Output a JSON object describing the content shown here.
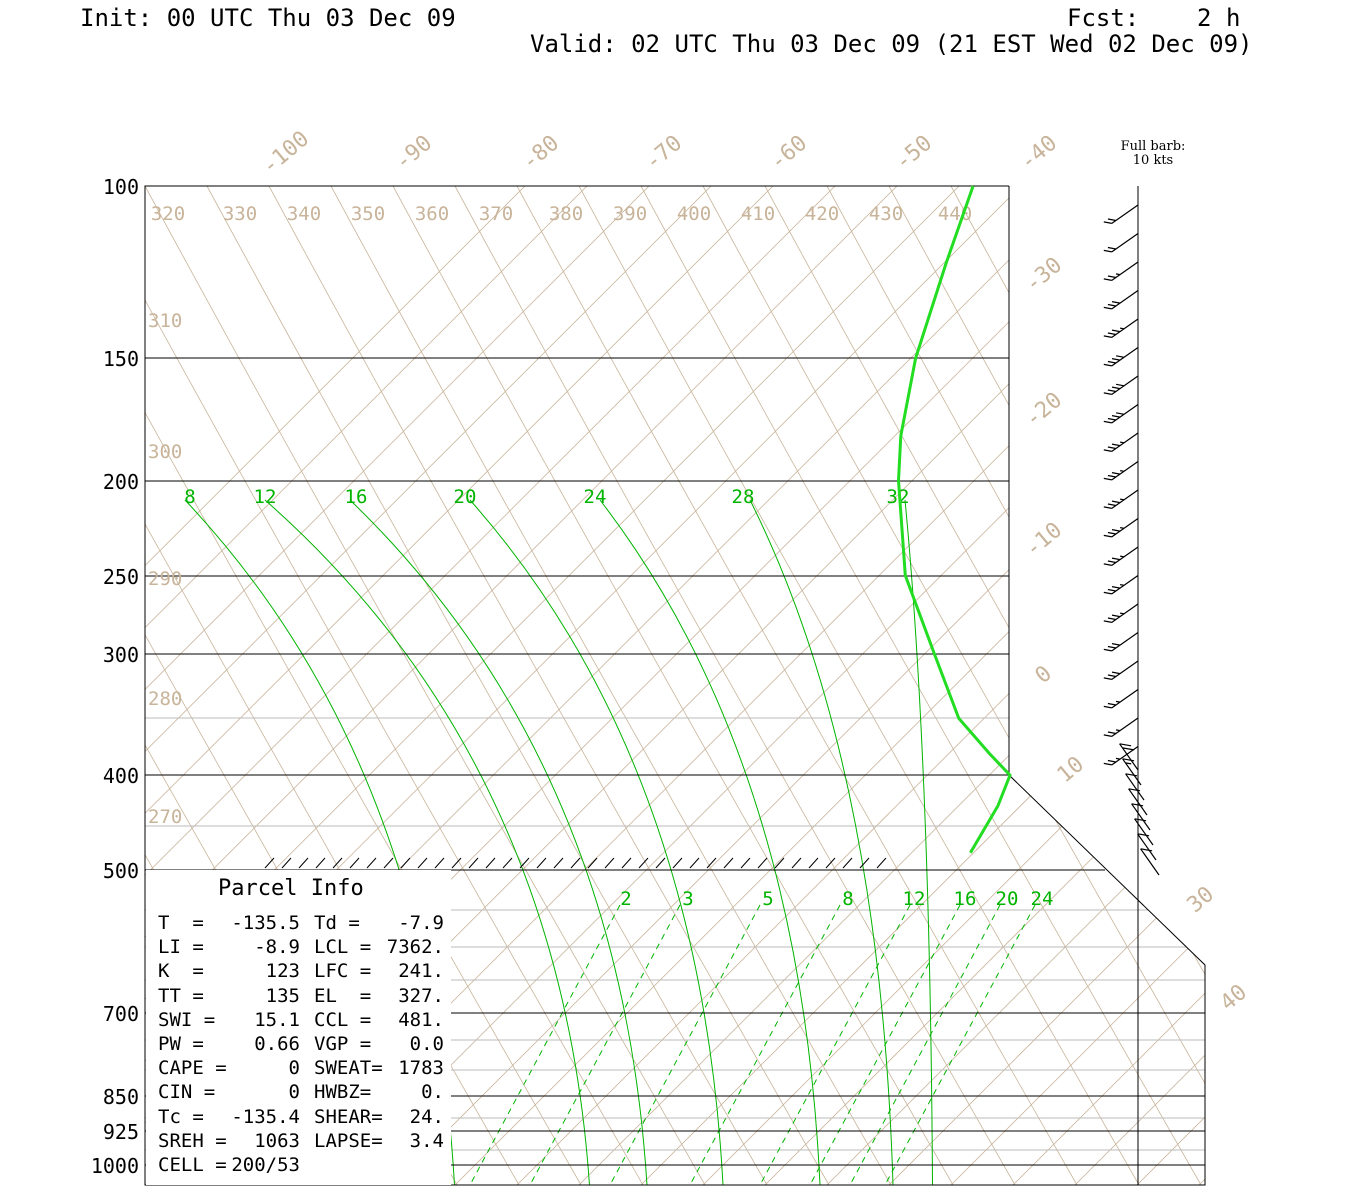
{
  "header": {
    "init": "Init: 00 UTC Thu 03 Dec 09",
    "fcst": "Fcst:    2 h",
    "valid": "Valid: 02 UTC Thu 03 Dec 09 (21 EST Wed 02 Dec 09)"
  },
  "barb_note": {
    "line1": "Full barb:",
    "line2": "10 kts"
  },
  "colors": {
    "theta": "#c8b49a",
    "mixing_ratio": "#00b400",
    "sounding": "#22dd22",
    "grid": "#000000",
    "wind": "#000000"
  },
  "chart_data": {
    "type": "skew-t",
    "pressure_levels_upper": [
      "100",
      "150",
      "200",
      "250",
      "300",
      "400",
      "500"
    ],
    "pressure_levels_lower": [
      "700",
      "850",
      "925",
      "1000"
    ],
    "temperature_labels": [
      "-100",
      "-90",
      "-80",
      "-70",
      "-60",
      "-50",
      "-40",
      "-30",
      "-20",
      "-10",
      "0",
      "10",
      "30",
      "40"
    ],
    "theta_top_labels": [
      "320",
      "330",
      "340",
      "350",
      "360",
      "370",
      "380",
      "390",
      "400",
      "410",
      "420",
      "430",
      "440"
    ],
    "theta_left_labels": [
      "310",
      "300",
      "290",
      "280",
      "270"
    ],
    "moist_adiabat_labels": [
      "8",
      "12",
      "16",
      "20",
      "24",
      "28",
      "32"
    ],
    "mixing_ratio_labels": [
      "2",
      "3",
      "5",
      "8",
      "12",
      "16",
      "20",
      "24"
    ],
    "sounding_temperature": [
      {
        "p": 100,
        "t": -44
      },
      {
        "p": 120,
        "t": -46
      },
      {
        "p": 150,
        "t": -48
      },
      {
        "p": 180,
        "t": -48
      },
      {
        "p": 200,
        "t": -47
      },
      {
        "p": 250,
        "t": -43
      },
      {
        "p": 300,
        "t": -36
      },
      {
        "p": 350,
        "t": -30
      },
      {
        "p": 380,
        "t": -24
      },
      {
        "p": 400,
        "t": -20
      },
      {
        "p": 430,
        "t": -21
      },
      {
        "p": 480,
        "t": -24
      }
    ],
    "wind_speed_kts": [
      20,
      20,
      25,
      30,
      35,
      40,
      40,
      40,
      35,
      35,
      35,
      35,
      35,
      35,
      35,
      30,
      30,
      25,
      25,
      25,
      20,
      15,
      10,
      10,
      10,
      10,
      10,
      10
    ]
  },
  "parcel": {
    "title": "Parcel Info",
    "rows": [
      {
        "l1": "T  =",
        "v1": "-135.5",
        "l2": "Td =",
        "v2": "-7.9"
      },
      {
        "l1": "LI =",
        "v1": "-8.9",
        "l2": "LCL =",
        "v2": "7362."
      },
      {
        "l1": "K  =",
        "v1": "123",
        "l2": "LFC =",
        "v2": "241."
      },
      {
        "l1": "TT =",
        "v1": "135",
        "l2": "EL  =",
        "v2": "327."
      },
      {
        "l1": "SWI =",
        "v1": "15.1",
        "l2": "CCL =",
        "v2": "481."
      },
      {
        "l1": "PW =",
        "v1": "0.66",
        "l2": "VGP =",
        "v2": "0.0"
      },
      {
        "l1": "CAPE =",
        "v1": "0",
        "l2": "SWEAT=",
        "v2": "1783"
      },
      {
        "l1": "CIN =",
        "v1": "0",
        "l2": "HWBZ=",
        "v2": "0."
      },
      {
        "l1": "Tc =",
        "v1": "-135.4",
        "l2": "SHEAR=",
        "v2": "24."
      },
      {
        "l1": "SREH =",
        "v1": "1063",
        "l2": "LAPSE=",
        "v2": "3.4"
      },
      {
        "l1": "CELL =",
        "v1": "200/53",
        "l2": "",
        "v2": ""
      }
    ]
  }
}
